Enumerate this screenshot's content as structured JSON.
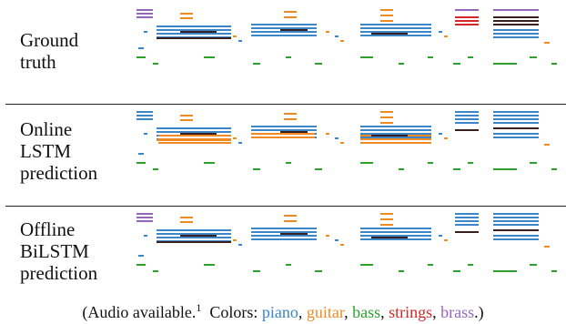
{
  "figure": {
    "rows": [
      {
        "id": "ground-truth",
        "label_lines": [
          "Ground",
          "truth"
        ]
      },
      {
        "id": "online-lstm",
        "label_lines": [
          "Online",
          "LSTM",
          "prediction"
        ]
      },
      {
        "id": "offline-bilstm",
        "label_lines": [
          "Offline",
          "BiLSTM",
          "prediction"
        ]
      }
    ],
    "caption": {
      "prefix": "(Audio available.",
      "footnote": "1",
      "colors_label": "Colors:",
      "instruments": [
        {
          "name": "piano",
          "color": "#3a86c8"
        },
        {
          "name": "guitar",
          "color": "#f08a24"
        },
        {
          "name": "bass",
          "color": "#2ea02c"
        },
        {
          "name": "strings",
          "color": "#d62728"
        },
        {
          "name": "brass",
          "color": "#9467bd"
        }
      ],
      "sep": ", ",
      "suffix": ".)"
    }
  }
}
